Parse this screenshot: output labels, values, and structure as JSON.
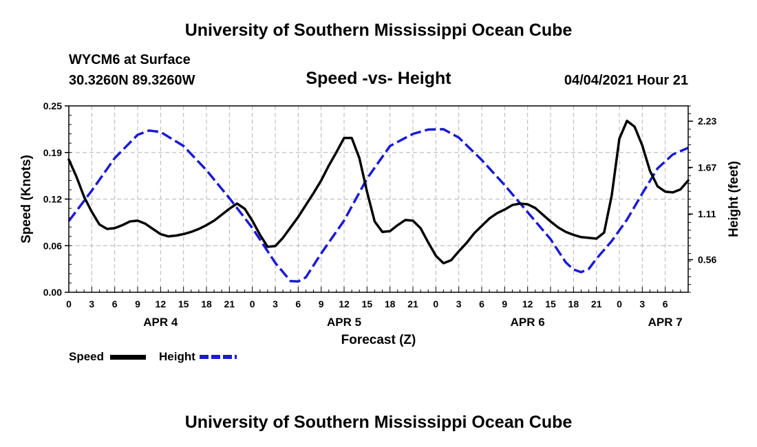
{
  "header": {
    "title": "University of Southern Mississippi Ocean Cube",
    "station": "WYCM6 at Surface",
    "location": "30.3260N  89.3260W",
    "plot_title": "Speed -vs- Height",
    "datetime": "04/04/2021 Hour 21"
  },
  "footer": {
    "title": "University of Southern Mississippi Ocean Cube"
  },
  "legend": {
    "speed_label": "Speed",
    "height_label": "Height"
  },
  "colors": {
    "speed": "#000000",
    "height": "#1a1ad6",
    "grid": "#b4b4b4"
  },
  "chart_data": {
    "type": "line",
    "title": "Speed -vs- Height",
    "xlabel": "Forecast (Z)",
    "ylabel_left": "Speed (Knots)",
    "ylabel_right": "Height (feet)",
    "x_range_hours": [
      0,
      81
    ],
    "x_ticks": [
      {
        "h": 0,
        "label": "0"
      },
      {
        "h": 3,
        "label": "3"
      },
      {
        "h": 6,
        "label": "6"
      },
      {
        "h": 9,
        "label": "9"
      },
      {
        "h": 12,
        "label": "12"
      },
      {
        "h": 15,
        "label": "15"
      },
      {
        "h": 18,
        "label": "18"
      },
      {
        "h": 21,
        "label": "21"
      },
      {
        "h": 24,
        "label": "0"
      },
      {
        "h": 27,
        "label": "3"
      },
      {
        "h": 30,
        "label": "6"
      },
      {
        "h": 33,
        "label": "9"
      },
      {
        "h": 36,
        "label": "12"
      },
      {
        "h": 39,
        "label": "15"
      },
      {
        "h": 42,
        "label": "18"
      },
      {
        "h": 45,
        "label": "21"
      },
      {
        "h": 48,
        "label": "0"
      },
      {
        "h": 51,
        "label": "3"
      },
      {
        "h": 54,
        "label": "6"
      },
      {
        "h": 57,
        "label": "9"
      },
      {
        "h": 60,
        "label": "12"
      },
      {
        "h": 63,
        "label": "15"
      },
      {
        "h": 66,
        "label": "18"
      },
      {
        "h": 69,
        "label": "21"
      },
      {
        "h": 72,
        "label": "0"
      },
      {
        "h": 75,
        "label": "3"
      },
      {
        "h": 78,
        "label": "6"
      }
    ],
    "day_labels": [
      {
        "h": 12,
        "label": "APR 4"
      },
      {
        "h": 36,
        "label": "APR 5"
      },
      {
        "h": 60,
        "label": "APR 6"
      },
      {
        "h": 78,
        "label": "APR 7"
      }
    ],
    "left_axis": {
      "range": [
        0,
        0.25
      ],
      "ticks": [
        "0.00",
        "0.06",
        "0.12",
        "0.19",
        "0.25"
      ]
    },
    "right_axis": {
      "ticks": [
        {
          "value": 0.56,
          "label": "0.56",
          "frac": 0.175
        },
        {
          "value": 1.11,
          "label": "1.11",
          "frac": 0.42
        },
        {
          "value": 1.67,
          "label": "1.67",
          "frac": 0.67
        },
        {
          "value": 2.23,
          "label": "2.23",
          "frac": 0.918
        }
      ]
    },
    "series": [
      {
        "name": "Speed",
        "axis": "left",
        "points": [
          [
            0,
            0.178
          ],
          [
            1,
            0.155
          ],
          [
            2,
            0.128
          ],
          [
            3,
            0.108
          ],
          [
            4,
            0.091
          ],
          [
            5,
            0.085
          ],
          [
            6,
            0.086
          ],
          [
            7,
            0.09
          ],
          [
            8,
            0.095
          ],
          [
            9,
            0.096
          ],
          [
            10,
            0.092
          ],
          [
            11,
            0.085
          ],
          [
            12,
            0.078
          ],
          [
            13,
            0.075
          ],
          [
            14,
            0.076
          ],
          [
            15,
            0.078
          ],
          [
            16,
            0.081
          ],
          [
            17,
            0.085
          ],
          [
            18,
            0.09
          ],
          [
            19,
            0.096
          ],
          [
            20,
            0.104
          ],
          [
            21,
            0.112
          ],
          [
            22,
            0.119
          ],
          [
            23,
            0.112
          ],
          [
            24,
            0.096
          ],
          [
            25,
            0.077
          ],
          [
            26,
            0.061
          ],
          [
            27,
            0.062
          ],
          [
            28,
            0.073
          ],
          [
            29,
            0.087
          ],
          [
            30,
            0.101
          ],
          [
            31,
            0.117
          ],
          [
            32,
            0.133
          ],
          [
            33,
            0.15
          ],
          [
            34,
            0.17
          ],
          [
            35,
            0.188
          ],
          [
            36,
            0.207
          ],
          [
            37,
            0.207
          ],
          [
            38,
            0.18
          ],
          [
            39,
            0.135
          ],
          [
            40,
            0.095
          ],
          [
            41,
            0.081
          ],
          [
            42,
            0.082
          ],
          [
            43,
            0.09
          ],
          [
            44,
            0.097
          ],
          [
            45,
            0.096
          ],
          [
            46,
            0.086
          ],
          [
            47,
            0.067
          ],
          [
            48,
            0.049
          ],
          [
            49,
            0.039
          ],
          [
            50,
            0.043
          ],
          [
            51,
            0.055
          ],
          [
            52,
            0.066
          ],
          [
            53,
            0.079
          ],
          [
            54,
            0.089
          ],
          [
            55,
            0.099
          ],
          [
            56,
            0.106
          ],
          [
            57,
            0.111
          ],
          [
            58,
            0.117
          ],
          [
            59,
            0.119
          ],
          [
            60,
            0.118
          ],
          [
            61,
            0.113
          ],
          [
            62,
            0.104
          ],
          [
            63,
            0.095
          ],
          [
            64,
            0.087
          ],
          [
            65,
            0.081
          ],
          [
            66,
            0.077
          ],
          [
            67,
            0.074
          ],
          [
            68,
            0.073
          ],
          [
            69,
            0.072
          ],
          [
            70,
            0.08
          ],
          [
            71,
            0.13
          ],
          [
            72,
            0.206
          ],
          [
            73,
            0.23
          ],
          [
            74,
            0.222
          ],
          [
            75,
            0.197
          ],
          [
            76,
            0.163
          ],
          [
            77,
            0.142
          ],
          [
            78,
            0.135
          ],
          [
            79,
            0.134
          ],
          [
            80,
            0.138
          ],
          [
            81,
            0.15
          ]
        ]
      },
      {
        "name": "Height",
        "axis": "right",
        "mapping": "fraction of axis height",
        "points": [
          [
            0,
            0.382
          ],
          [
            3,
            0.545
          ],
          [
            6,
            0.72
          ],
          [
            9,
            0.845
          ],
          [
            10.5,
            0.868
          ],
          [
            12,
            0.86
          ],
          [
            15,
            0.785
          ],
          [
            18,
            0.655
          ],
          [
            21,
            0.505
          ],
          [
            24,
            0.345
          ],
          [
            27,
            0.158
          ],
          [
            29,
            0.06
          ],
          [
            30,
            0.058
          ],
          [
            31,
            0.08
          ],
          [
            33,
            0.208
          ],
          [
            36,
            0.385
          ],
          [
            39,
            0.61
          ],
          [
            42,
            0.785
          ],
          [
            45,
            0.85
          ],
          [
            47,
            0.873
          ],
          [
            49,
            0.875
          ],
          [
            51,
            0.83
          ],
          [
            54,
            0.71
          ],
          [
            57,
            0.575
          ],
          [
            60,
            0.43
          ],
          [
            63,
            0.285
          ],
          [
            65,
            0.16
          ],
          [
            66,
            0.122
          ],
          [
            67,
            0.108
          ],
          [
            68,
            0.125
          ],
          [
            69,
            0.18
          ],
          [
            71,
            0.275
          ],
          [
            73,
            0.39
          ],
          [
            75,
            0.53
          ],
          [
            77,
            0.665
          ],
          [
            79,
            0.74
          ],
          [
            81,
            0.775
          ]
        ]
      }
    ]
  }
}
